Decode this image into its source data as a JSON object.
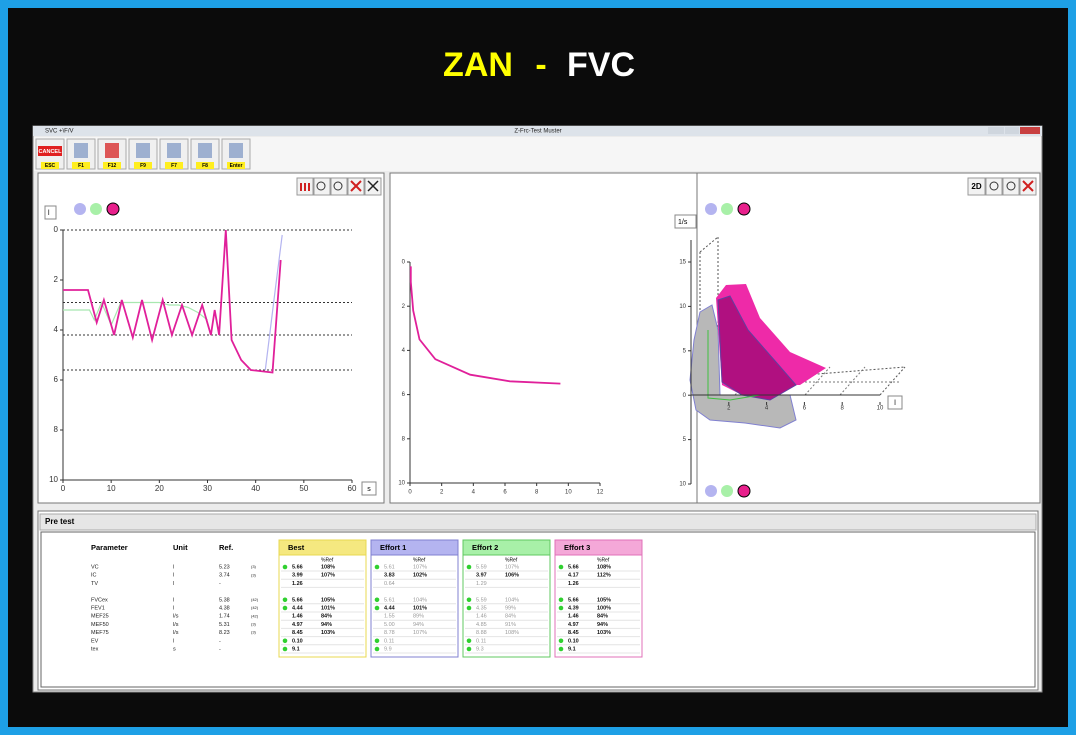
{
  "title": {
    "main": "ZAN",
    "separator": "-",
    "sub": "FVC"
  },
  "window": {
    "title_left": "SVC +\\F/V",
    "title_center": "Z-Frc-Test Muster",
    "toolbar": [
      {
        "label": "CANCEL",
        "key": "ESC"
      },
      {
        "key": "F1"
      },
      {
        "key": "F12"
      },
      {
        "key": "F9"
      },
      {
        "key": "F7"
      },
      {
        "key": "F8"
      },
      {
        "key": "Enter"
      }
    ]
  },
  "chart_data": [
    {
      "type": "line",
      "x_unit": "s",
      "y_unit": "l",
      "xlim": [
        0,
        60
      ],
      "xticks": [
        0,
        10,
        20,
        30,
        40,
        50,
        60
      ],
      "ylim": [
        10,
        0
      ],
      "yticks": [
        0,
        2,
        4,
        6,
        8,
        10
      ],
      "ref_lines": [
        0,
        2.9,
        4.2,
        5.6
      ],
      "series": [
        {
          "color": "#a8e8b0",
          "x": [
            0,
            3,
            5.5,
            6.5,
            8,
            10,
            12,
            14,
            16,
            18,
            20,
            22,
            24,
            26,
            28,
            30
          ],
          "values": [
            3.2,
            3.2,
            3.2,
            3.6,
            2.9,
            3.8,
            2.9,
            2.9,
            2.9,
            2.9,
            2.9,
            3.0,
            3.0,
            3.1,
            3.3,
            3.6
          ]
        },
        {
          "color": "#b4b4f0",
          "x": [
            42,
            44,
            45.5
          ],
          "values": [
            5.6,
            2.5,
            0.2
          ]
        },
        {
          "color": "#e0209a",
          "x": [
            0,
            5.2,
            7,
            8.5,
            10.6,
            12.2,
            14.5,
            16.4,
            18.5,
            20.7,
            22.6,
            24.7,
            26.8,
            28.9,
            30.7,
            31.5,
            32.4,
            33.8,
            35,
            37,
            39,
            43.5,
            45.2
          ],
          "values": [
            2.4,
            2.4,
            3.7,
            2.8,
            4.2,
            2.8,
            4.3,
            2.8,
            4.4,
            2.8,
            4.2,
            3,
            4.2,
            3,
            4.2,
            3.2,
            4.2,
            0,
            4.4,
            5.2,
            5.6,
            5.7,
            1.2
          ]
        }
      ]
    },
    {
      "type": "line",
      "xlim": [
        0,
        12
      ],
      "xticks": [
        0,
        2,
        4,
        6,
        8,
        10,
        12
      ],
      "ylim": [
        10,
        0
      ],
      "yticks": [
        0,
        2,
        4,
        6,
        8,
        10
      ],
      "series": [
        {
          "color": "#e0209a",
          "x": [
            0.05,
            0.05,
            0.2,
            0.6,
            1.6,
            3.8,
            6.3,
            9.5
          ],
          "values": [
            0.2,
            0.9,
            2.2,
            3.5,
            4.4,
            5.1,
            5.4,
            5.5
          ]
        }
      ]
    },
    {
      "type": "3d",
      "toolbar_label": "2D",
      "x_unit": "l",
      "y_unit": "1/s",
      "xlim": [
        0,
        10
      ],
      "xticks": [
        2,
        4,
        6,
        8,
        10
      ],
      "ylim": [
        -10,
        15
      ],
      "yticks": [
        {
          "value": -10,
          "label": "10"
        },
        {
          "value": -5,
          "label": "5"
        },
        0,
        5,
        10,
        15
      ]
    }
  ],
  "table": {
    "section_title": "Pre test",
    "header": [
      "Parameter",
      "Unit",
      "Ref."
    ],
    "rows": [
      [
        "VC",
        "l",
        "5.23",
        "(3)"
      ],
      [
        "IC",
        "l",
        "3.74",
        "(3)"
      ],
      [
        "TV",
        "l",
        "-"
      ],
      null,
      [
        "FVCex",
        "l",
        "5.38",
        "(42)"
      ],
      [
        "FEV1",
        "l",
        "4.38",
        "(42)"
      ],
      [
        "MEF25",
        "l/s",
        "1.74",
        "(42)"
      ],
      [
        "MEF50",
        "l/s",
        "5.31",
        "(3)"
      ],
      [
        "MEF75",
        "l/s",
        "8.23",
        "(3)"
      ],
      [
        "EV",
        "l",
        "-"
      ],
      [
        "tex",
        "s",
        "-"
      ]
    ],
    "dot_rows": [
      0,
      4,
      5,
      9,
      10
    ],
    "groups": [
      {
        "title": "Best",
        "color": "#f5e880",
        "border": "#e8d850",
        "ref_header": "%Ref",
        "bold_rows": [
          0,
          1,
          2,
          4,
          5,
          6,
          7,
          8,
          9,
          10
        ],
        "rows": [
          [
            "5.66",
            "108%"
          ],
          [
            "3.99",
            "107%"
          ],
          [
            "1.26"
          ],
          null,
          [
            "5.66",
            "105%"
          ],
          [
            "4.44",
            "101%"
          ],
          [
            "1.46",
            "84%"
          ],
          [
            "4.97",
            "94%"
          ],
          [
            "8.45",
            "103%"
          ],
          [
            "0.10"
          ],
          [
            "9.1"
          ]
        ]
      },
      {
        "title": "Effort 1",
        "color": "#b4b4f0",
        "border": "#8080d0",
        "ref_header": "%Ref",
        "bold_rows": [
          1,
          5
        ],
        "rows": [
          [
            "5.61",
            "107%"
          ],
          [
            "3.83",
            "102%"
          ],
          [
            "0.64"
          ],
          null,
          [
            "5.61",
            "104%"
          ],
          [
            "4.44",
            "101%"
          ],
          [
            "1.55",
            "89%"
          ],
          [
            "5.00",
            "94%"
          ],
          [
            "8.78",
            "107%"
          ],
          [
            "0.11"
          ],
          [
            "9.9"
          ]
        ]
      },
      {
        "title": "Effort 2",
        "color": "#a8f0a8",
        "border": "#60c860",
        "ref_header": "%Ref",
        "bold_rows": [
          1
        ],
        "rows": [
          [
            "5.59",
            "107%"
          ],
          [
            "3.97",
            "106%"
          ],
          [
            "1.29"
          ],
          null,
          [
            "5.59",
            "104%"
          ],
          [
            "4.35",
            "99%"
          ],
          [
            "1.46",
            "84%"
          ],
          [
            "4.85",
            "91%"
          ],
          [
            "8.88",
            "108%"
          ],
          [
            "0.11"
          ],
          [
            "9.3"
          ]
        ]
      },
      {
        "title": "Effort 3",
        "color": "#f4a8d8",
        "border": "#e070b8",
        "ref_header": "%Ref",
        "bold_rows": [
          0,
          1,
          2,
          4,
          5,
          6,
          7,
          8,
          9,
          10
        ],
        "rows": [
          [
            "5.66",
            "108%"
          ],
          [
            "4.17",
            "112%"
          ],
          [
            "1.26"
          ],
          null,
          [
            "5.66",
            "105%"
          ],
          [
            "4.39",
            "100%"
          ],
          [
            "1.46",
            "84%"
          ],
          [
            "4.97",
            "94%"
          ],
          [
            "8.45",
            "103%"
          ],
          [
            "0.10"
          ],
          [
            "9.1"
          ]
        ]
      }
    ]
  }
}
